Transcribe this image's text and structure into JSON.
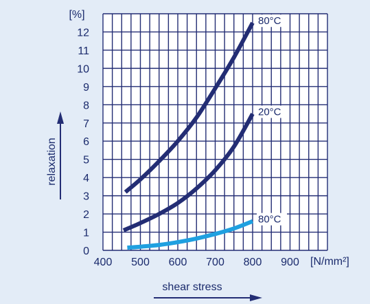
{
  "chart_data": {
    "type": "line",
    "xlabel": "shear stress",
    "ylabel": "relaxation",
    "x_unit": "[N/mm²]",
    "y_unit": "[%]",
    "xlim": [
      400,
      1000
    ],
    "ylim": [
      0,
      13
    ],
    "x_ticks": [
      400,
      500,
      600,
      700,
      800,
      900
    ],
    "y_ticks": [
      0,
      1,
      2,
      3,
      4,
      5,
      6,
      7,
      8,
      9,
      10,
      11,
      12
    ],
    "grid": true,
    "series": [
      {
        "name": "80°C",
        "color": "#232d74",
        "x": [
          460,
          500,
          550,
          600,
          650,
          700,
          750,
          800
        ],
        "y": [
          3.2,
          3.9,
          4.9,
          6.0,
          7.3,
          8.9,
          10.6,
          12.5
        ]
      },
      {
        "name": "20°C",
        "color": "#232d74",
        "x": [
          455,
          500,
          550,
          600,
          650,
          700,
          750,
          800
        ],
        "y": [
          1.1,
          1.5,
          2.0,
          2.6,
          3.4,
          4.4,
          5.7,
          7.5
        ]
      },
      {
        "name": "80°C",
        "color": "#1fa0e0",
        "x": [
          465,
          500,
          550,
          600,
          650,
          700,
          750,
          800
        ],
        "y": [
          0.15,
          0.2,
          0.3,
          0.45,
          0.65,
          0.9,
          1.2,
          1.6
        ]
      }
    ]
  }
}
